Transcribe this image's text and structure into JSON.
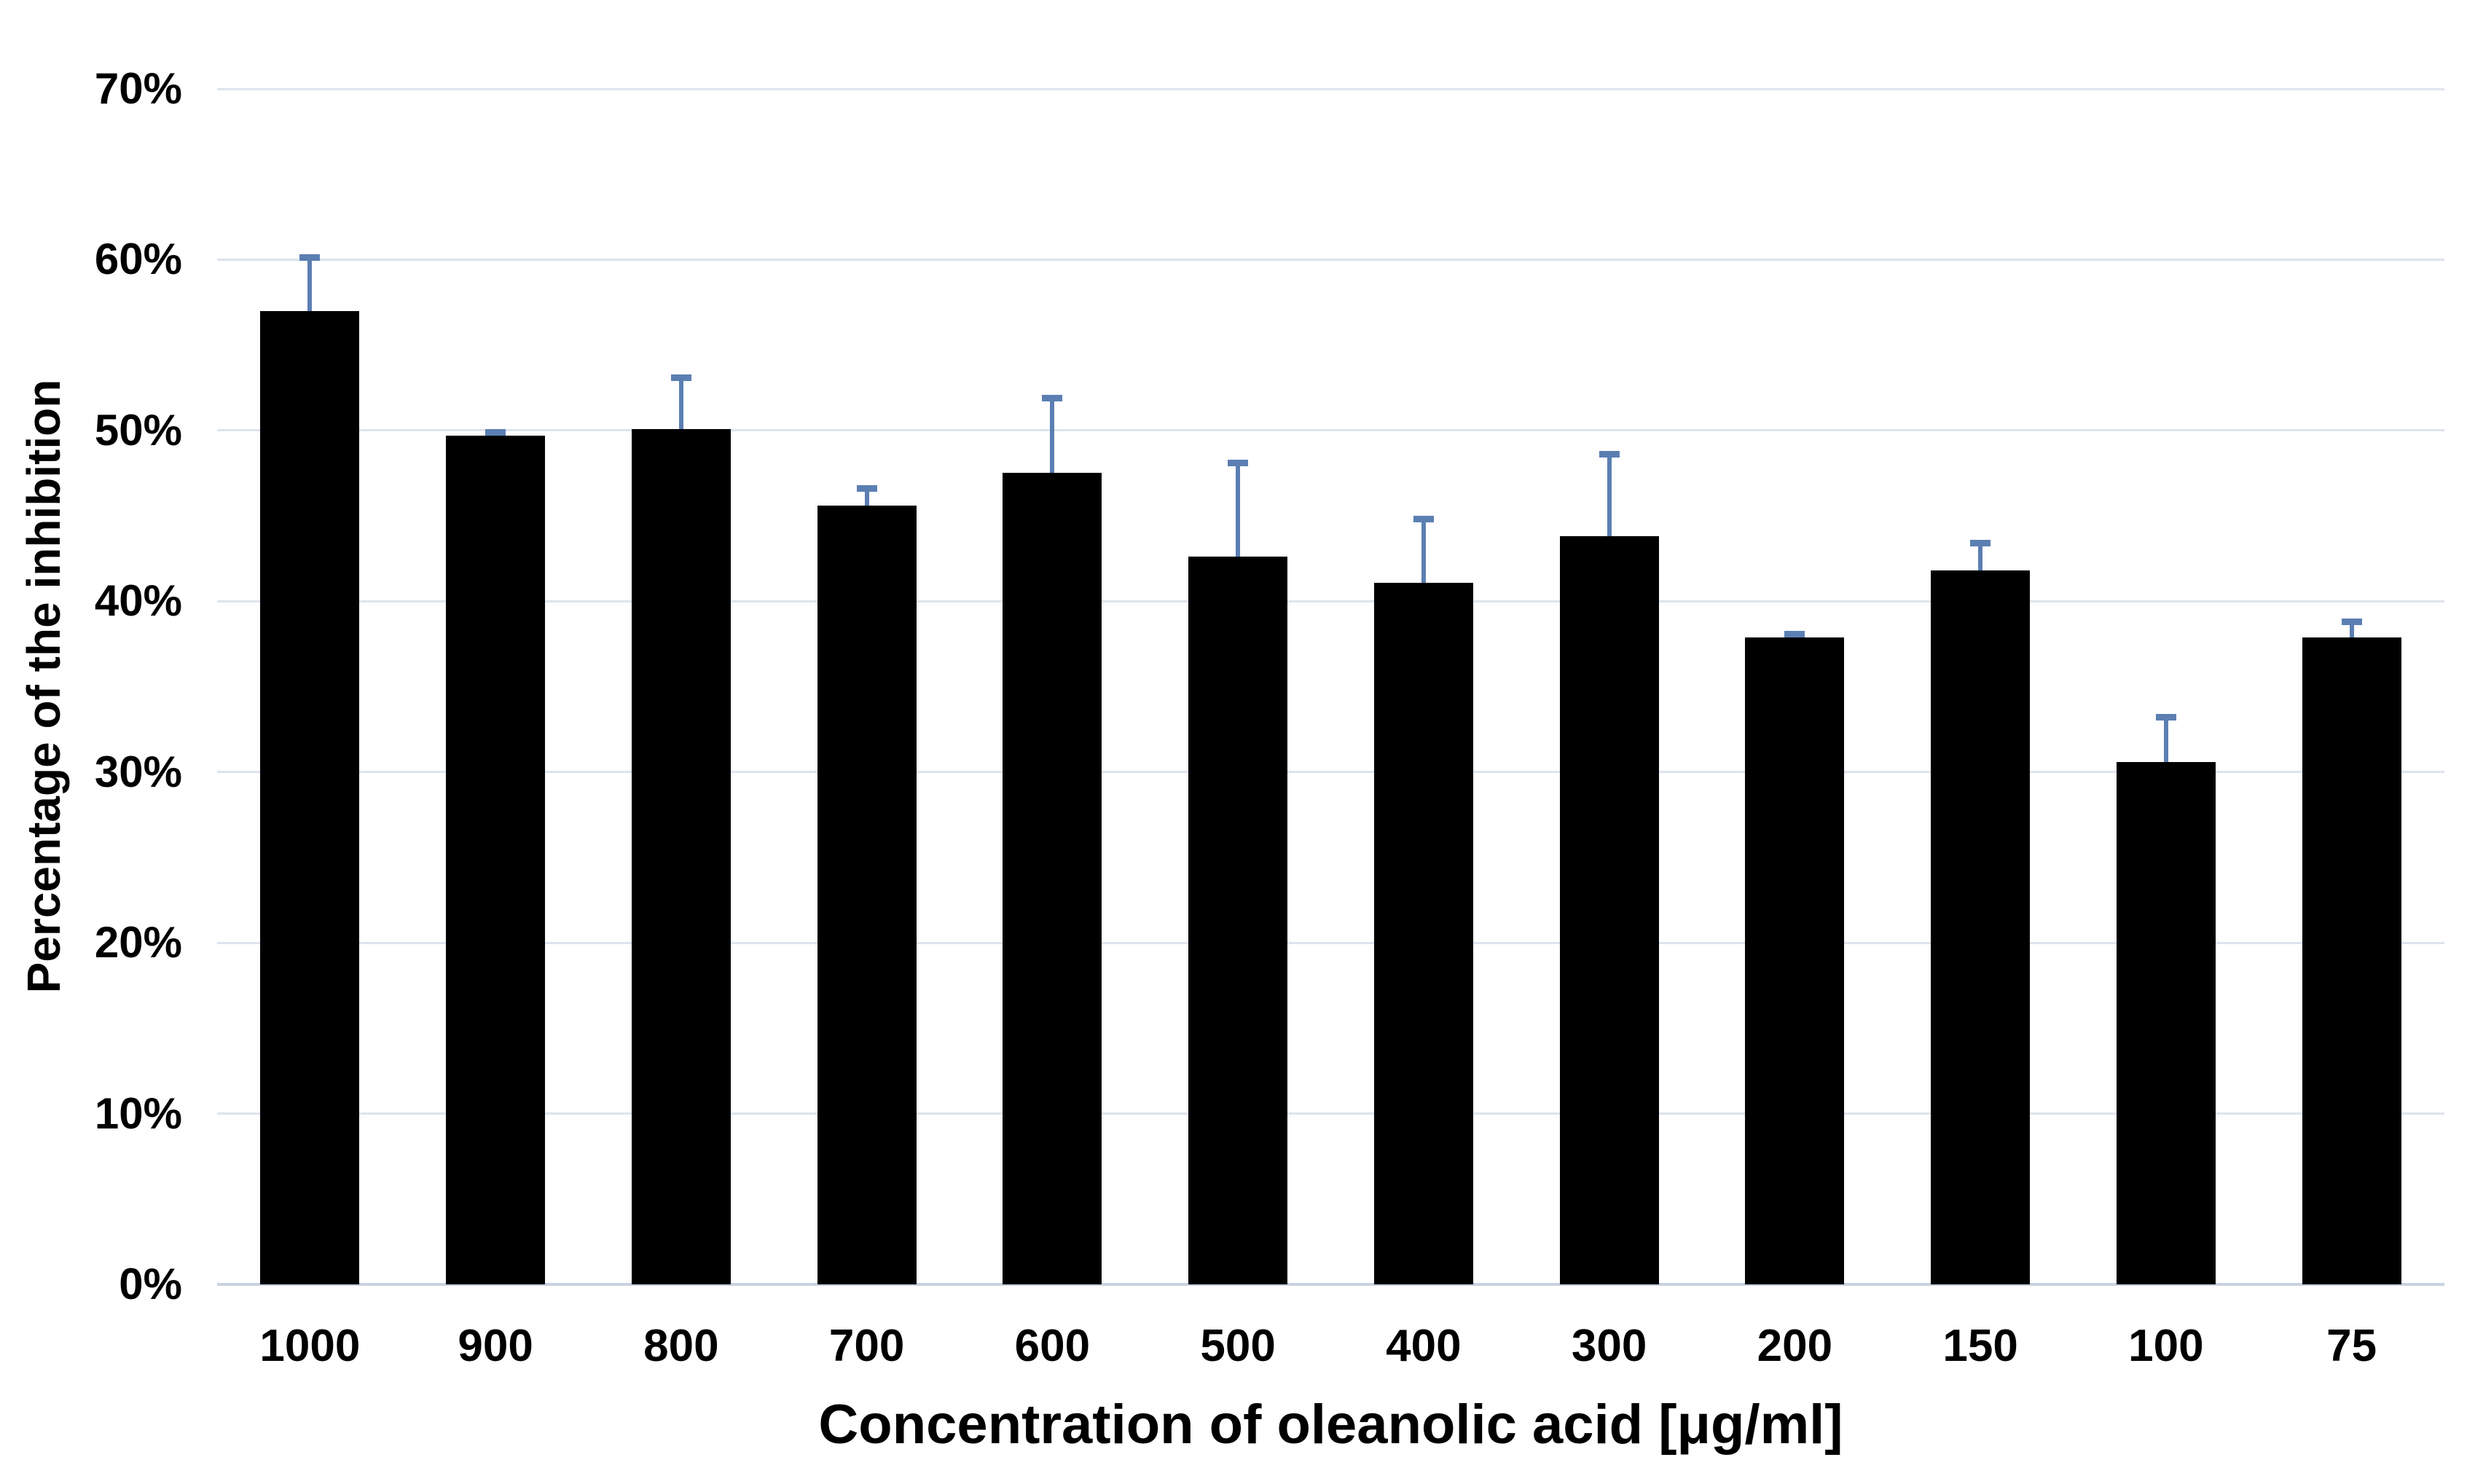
{
  "chart_data": {
    "type": "bar",
    "title": "",
    "xlabel": "Concentration of oleanolic acid [μg/ml]",
    "ylabel": "Percentage of the inhibition",
    "categories": [
      "1000",
      "900",
      "800",
      "700",
      "600",
      "500",
      "400",
      "300",
      "200",
      "150",
      "100",
      "75"
    ],
    "values": [
      57.0,
      49.7,
      50.1,
      45.6,
      47.5,
      42.6,
      41.1,
      43.8,
      37.9,
      41.8,
      30.6,
      37.9
    ],
    "errors_plus": [
      3.3,
      0.2,
      3.2,
      1.2,
      4.6,
      5.7,
      3.9,
      5.0,
      0.3,
      1.8,
      2.8,
      1.1
    ],
    "ylim": [
      0,
      70
    ],
    "ytick_step": 10,
    "ytick_labels": [
      "0%",
      "10%",
      "20%",
      "30%",
      "40%",
      "50%",
      "60%",
      "70%"
    ],
    "grid": true,
    "legend_position": "none",
    "bar_color": "#000000",
    "error_bar_color": "#5b7fb2",
    "gridline_color": "#dde4ee",
    "axis_line_color": "#c9d2e0",
    "background_color": "#ffffff",
    "text_color": "#000000"
  }
}
